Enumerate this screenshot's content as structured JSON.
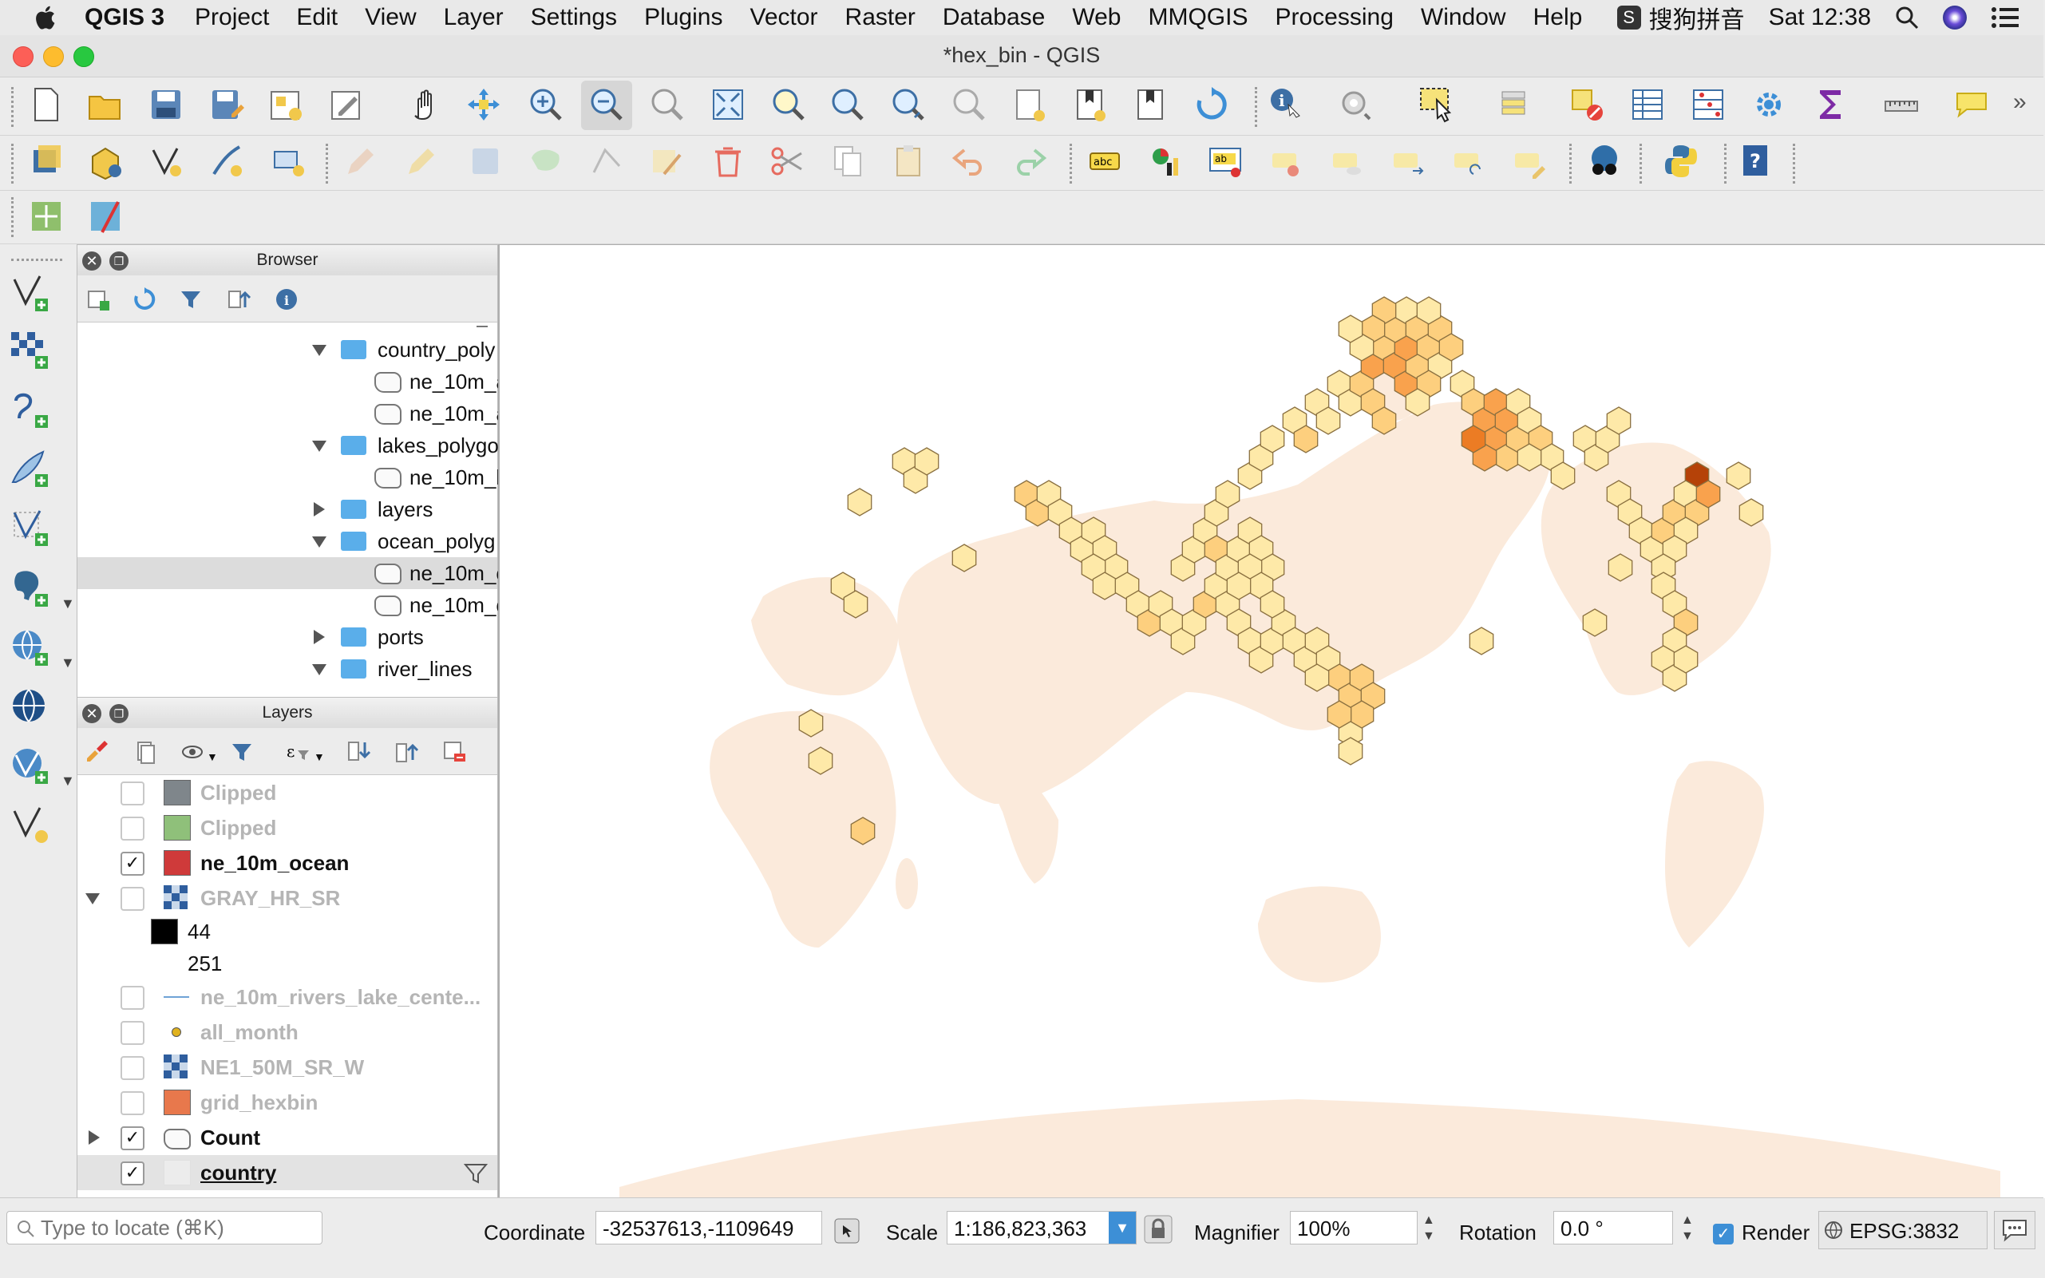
{
  "menubar": {
    "app_name": "QGIS 3",
    "items": [
      "Project",
      "Edit",
      "View",
      "Layer",
      "Settings",
      "Plugins",
      "Vector",
      "Raster",
      "Database",
      "Web",
      "MMQGIS",
      "Processing",
      "Window",
      "Help"
    ],
    "input_method": "搜狗拼音",
    "clock": "Sat 12:38"
  },
  "window": {
    "title": "*hex_bin - QGIS"
  },
  "browser": {
    "title": "Browser",
    "items": [
      {
        "label": "country_poly",
        "type": "folder",
        "expanded": true,
        "level": 1
      },
      {
        "label": "ne_10m_a",
        "type": "layer",
        "level": 2
      },
      {
        "label": "ne_10m_a",
        "type": "layer",
        "level": 2
      },
      {
        "label": "lakes_polygo",
        "type": "folder",
        "expanded": true,
        "level": 1
      },
      {
        "label": "ne_10m_l",
        "type": "layer",
        "level": 2
      },
      {
        "label": "layers",
        "type": "folder",
        "expanded": false,
        "level": 1
      },
      {
        "label": "ocean_polyg",
        "type": "folder",
        "expanded": true,
        "level": 1
      },
      {
        "label": "ne_10m_o",
        "type": "layer",
        "level": 2,
        "selected": true
      },
      {
        "label": "ne_10m_o",
        "type": "layer",
        "level": 2
      },
      {
        "label": "ports",
        "type": "folder",
        "expanded": false,
        "level": 1
      },
      {
        "label": "river_lines",
        "type": "folder",
        "expanded": true,
        "level": 1
      }
    ]
  },
  "layers_panel": {
    "title": "Layers",
    "items": [
      {
        "label": "Clipped",
        "checked": false,
        "swatch": "#7f868b",
        "active": false
      },
      {
        "label": "Clipped",
        "checked": false,
        "swatch": "#8fc07a",
        "active": false
      },
      {
        "label": "ne_10m_ocean",
        "checked": true,
        "swatch": "#cf3a3a",
        "active": true
      },
      {
        "label": "GRAY_HR_SR",
        "checked": false,
        "swatch": "raster",
        "active": false
      },
      {
        "label": "ne_10m_rivers_lake_cente...",
        "checked": false,
        "swatch": "line",
        "active": false
      },
      {
        "label": "all_month",
        "checked": false,
        "swatch": "point",
        "active": false
      },
      {
        "label": "NE1_50M_SR_W",
        "checked": false,
        "swatch": "raster",
        "active": false
      },
      {
        "label": "grid_hexbin",
        "checked": false,
        "swatch": "#e8784c",
        "active": false
      },
      {
        "label": "Count",
        "checked": true,
        "swatch": "polygon",
        "active": true
      },
      {
        "label": "country",
        "checked": true,
        "swatch": "#eeeeee",
        "active": true
      }
    ],
    "legend": [
      {
        "value": "44",
        "color": "#000000"
      },
      {
        "value": "251",
        "color": "#ffffff"
      }
    ]
  },
  "statusbar": {
    "locate_placeholder": "Type to locate (⌘K)",
    "coordinate_label": "Coordinate",
    "coordinate_value": "-32537613,-1109649",
    "scale_label": "Scale",
    "scale_value": "1:186,823,363",
    "magnifier_label": "Magnifier",
    "magnifier_value": "100%",
    "rotation_label": "Rotation",
    "rotation_value": "0.0 °",
    "render_label": "Render",
    "render_checked": true,
    "crs": "EPSG:3832"
  },
  "map": {
    "land_color": "#fbeadb",
    "hex_colors": [
      "#fee9a8",
      "#fdcf7e",
      "#f9a24d",
      "#ec7c24",
      "#d35a12",
      "#b54208"
    ]
  }
}
